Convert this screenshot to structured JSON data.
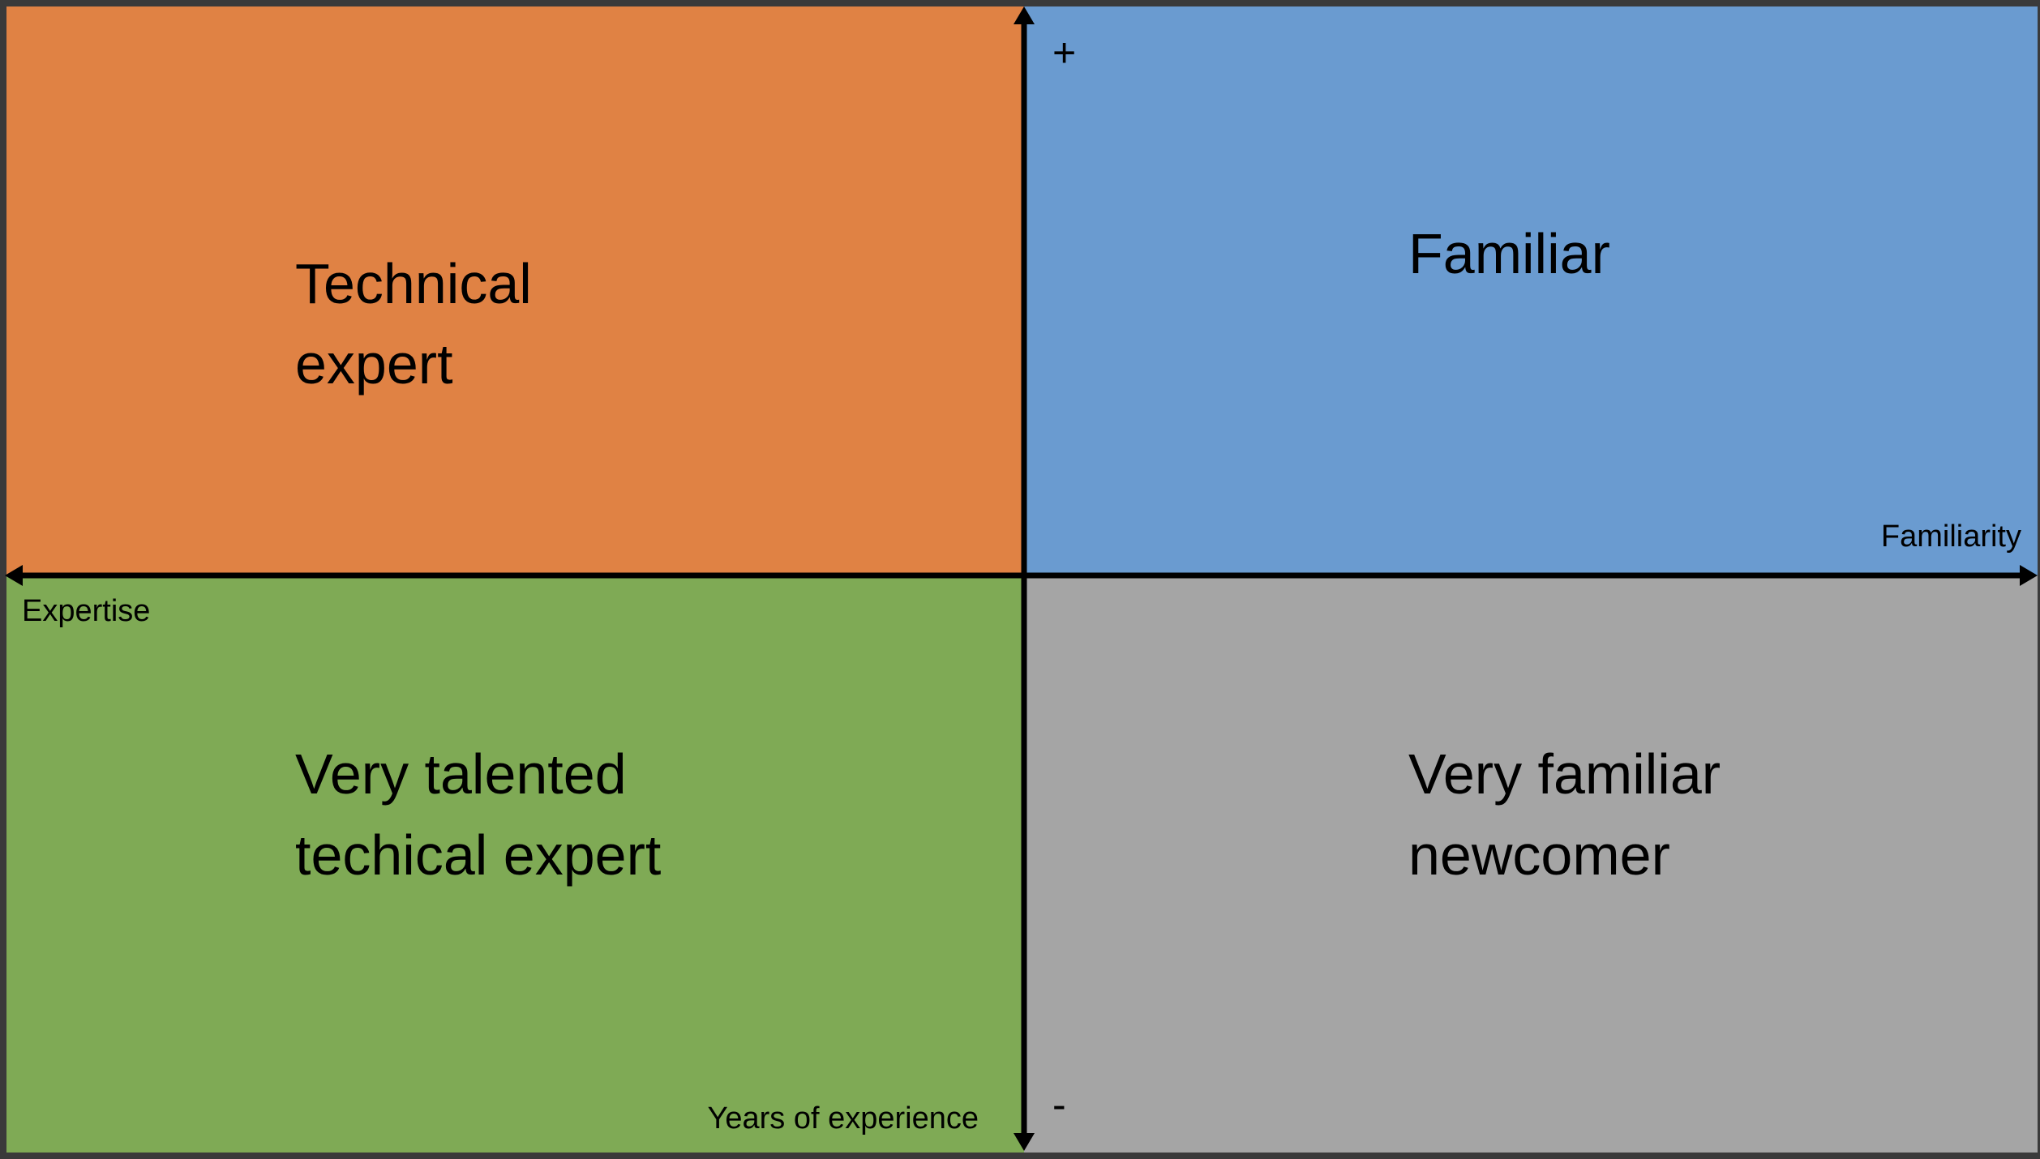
{
  "quadrants": [
    {
      "lines": [
        "Technical",
        "expert"
      ]
    },
    {
      "lines": [
        "Familiar"
      ]
    },
    {
      "lines": [
        "Very talented",
        "techical expert"
      ]
    },
    {
      "lines": [
        "Very familiar",
        "newcomer"
      ]
    }
  ],
  "axes": {
    "top_marker": "+",
    "bottom_marker": "-",
    "right_label": "Familiarity",
    "left_label": "Expertise",
    "bottom_label": "Years of experience"
  }
}
